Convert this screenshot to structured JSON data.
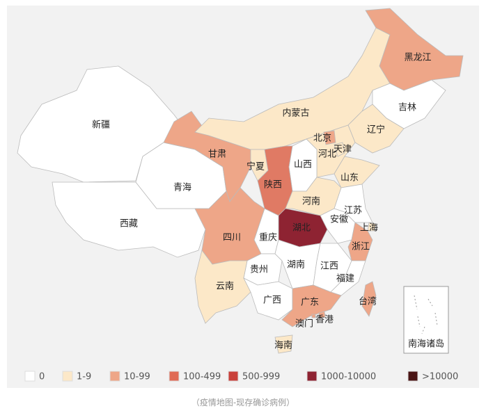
{
  "chart_data": {
    "type": "choropleth",
    "regions": [
      {
        "name": "新疆",
        "color": "#ffffff"
      },
      {
        "name": "西藏",
        "color": "#ffffff"
      },
      {
        "name": "青海",
        "color": "#ffffff"
      },
      {
        "name": "甘肃",
        "color": "#eea688"
      },
      {
        "name": "内蒙古",
        "color": "#fce8c8"
      },
      {
        "name": "黑龙江",
        "color": "#eea688"
      },
      {
        "name": "吉林",
        "color": "#ffffff"
      },
      {
        "name": "辽宁",
        "color": "#fce8c8"
      },
      {
        "name": "河北",
        "color": "#fce8c8"
      },
      {
        "name": "北京",
        "color": "#eea688"
      },
      {
        "name": "天津",
        "color": "#fce8c8"
      },
      {
        "name": "山西",
        "color": "#ffffff"
      },
      {
        "name": "山东",
        "color": "#fce8c8"
      },
      {
        "name": "宁夏",
        "color": "#fce8c8"
      },
      {
        "name": "陕西",
        "color": "#e07a64"
      },
      {
        "name": "河南",
        "color": "#fce8c8"
      },
      {
        "name": "江苏",
        "color": "#ffffff"
      },
      {
        "name": "安徽",
        "color": "#ffffff"
      },
      {
        "name": "上海",
        "color": "#fce8c8"
      },
      {
        "name": "湖北",
        "color": "#8e2332"
      },
      {
        "name": "浙江",
        "color": "#eea688"
      },
      {
        "name": "重庆",
        "color": "#ffffff"
      },
      {
        "name": "四川",
        "color": "#eea688"
      },
      {
        "name": "贵州",
        "color": "#ffffff"
      },
      {
        "name": "云南",
        "color": "#fce8c8"
      },
      {
        "name": "湖南",
        "color": "#ffffff"
      },
      {
        "name": "江西",
        "color": "#ffffff"
      },
      {
        "name": "福建",
        "color": "#ffffff"
      },
      {
        "name": "广西",
        "color": "#ffffff"
      },
      {
        "name": "广东",
        "color": "#eea688"
      },
      {
        "name": "香港",
        "color": "#eea688"
      },
      {
        "name": "澳门",
        "color": "#eea688"
      },
      {
        "name": "台湾",
        "color": "#eea688"
      },
      {
        "name": "海南",
        "color": "#fce8c8"
      }
    ],
    "inset_label": "南海诸岛",
    "legend": [
      {
        "label": "0",
        "color": "#ffffff"
      },
      {
        "label": "1-9",
        "color": "#fce8c8"
      },
      {
        "label": "10-99",
        "color": "#eea688"
      },
      {
        "label": "100-499",
        "color": "#e06a55"
      },
      {
        "label": "500-999",
        "color": "#c9403a"
      },
      {
        "label": "1000-10000",
        "color": "#8e2332"
      },
      {
        "label": ">10000",
        "color": "#4a1515"
      }
    ],
    "caption": "（疫情地图-现存确诊病例）"
  }
}
